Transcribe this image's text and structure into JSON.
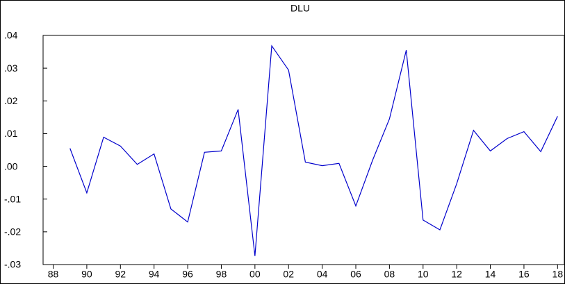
{
  "chart_data": {
    "type": "line",
    "title": "DLU",
    "x": [
      1989,
      1990,
      1991,
      1992,
      1993,
      1994,
      1995,
      1996,
      1997,
      1998,
      1999,
      2000,
      2001,
      2002,
      2003,
      2004,
      2005,
      2006,
      2007,
      2008,
      2009,
      2010,
      2011,
      2012,
      2013,
      2014,
      2015,
      2016,
      2017,
      2018
    ],
    "series": [
      {
        "name": "DLU",
        "color": "#0000cc",
        "values": [
          0.0055,
          -0.0081,
          0.0089,
          0.0062,
          0.0006,
          0.0038,
          -0.013,
          -0.017,
          0.0043,
          0.0047,
          0.0174,
          -0.0274,
          0.0368,
          0.0294,
          0.0013,
          0.0002,
          0.0009,
          -0.0121,
          0.0019,
          0.0145,
          0.0355,
          -0.0164,
          -0.0194,
          -0.0053,
          0.011,
          0.0047,
          0.0085,
          0.0106,
          0.0045,
          0.0153
        ]
      }
    ],
    "xlim": [
      1987.4,
      2018.4
    ],
    "xticks": [
      {
        "value": 1988,
        "label": "88"
      },
      {
        "value": 1990,
        "label": "90"
      },
      {
        "value": 1992,
        "label": "92"
      },
      {
        "value": 1994,
        "label": "94"
      },
      {
        "value": 1996,
        "label": "96"
      },
      {
        "value": 1998,
        "label": "98"
      },
      {
        "value": 2000,
        "label": "00"
      },
      {
        "value": 2002,
        "label": "02"
      },
      {
        "value": 2004,
        "label": "04"
      },
      {
        "value": 2006,
        "label": "06"
      },
      {
        "value": 2008,
        "label": "08"
      },
      {
        "value": 2010,
        "label": "10"
      },
      {
        "value": 2012,
        "label": "12"
      },
      {
        "value": 2014,
        "label": "14"
      },
      {
        "value": 2016,
        "label": "16"
      },
      {
        "value": 2018,
        "label": "18"
      }
    ],
    "ylim": [
      -0.03,
      0.04
    ],
    "yticks": [
      {
        "value": -0.03,
        "label": "-.03"
      },
      {
        "value": -0.02,
        "label": "-.02"
      },
      {
        "value": -0.01,
        "label": "-.01"
      },
      {
        "value": 0,
        "label": ".00"
      },
      {
        "value": 0.01,
        "label": ".01"
      },
      {
        "value": 0.02,
        "label": ".02"
      },
      {
        "value": 0.03,
        "label": ".03"
      },
      {
        "value": 0.04,
        "label": ".04"
      }
    ]
  }
}
